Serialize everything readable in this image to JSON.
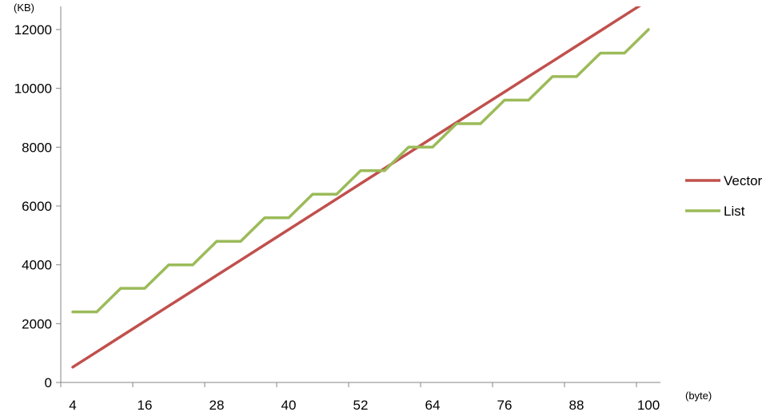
{
  "chart_data": {
    "type": "line",
    "title": "",
    "xlabel": "(byte)",
    "ylabel": "(KB)",
    "x": [
      4,
      8,
      12,
      16,
      20,
      24,
      28,
      32,
      36,
      40,
      44,
      48,
      52,
      56,
      60,
      64,
      68,
      72,
      76,
      80,
      84,
      88,
      92,
      96,
      100
    ],
    "x_ticks": [
      4,
      16,
      28,
      40,
      52,
      64,
      76,
      88,
      100
    ],
    "y_ticks": [
      0,
      2000,
      4000,
      6000,
      8000,
      10000,
      12000
    ],
    "ylim": [
      0,
      12000
    ],
    "grid": false,
    "legend_position": "right",
    "series": [
      {
        "name": "Vector",
        "color": "#c0504d",
        "values": [
          520,
          1040,
          1560,
          2080,
          2600,
          3120,
          3640,
          4160,
          4680,
          5200,
          5720,
          6240,
          6760,
          7280,
          7800,
          8320,
          8840,
          9360,
          9880,
          10400,
          10920,
          11440,
          11960,
          12480,
          13000
        ]
      },
      {
        "name": "List",
        "color": "#9bbb59",
        "values": [
          2400,
          2400,
          3200,
          3200,
          4000,
          4000,
          4800,
          4800,
          5600,
          5600,
          6400,
          6400,
          7200,
          7200,
          8000,
          8000,
          8800,
          8800,
          9600,
          9600,
          10400,
          10400,
          11200,
          11200,
          12000
        ]
      }
    ]
  }
}
